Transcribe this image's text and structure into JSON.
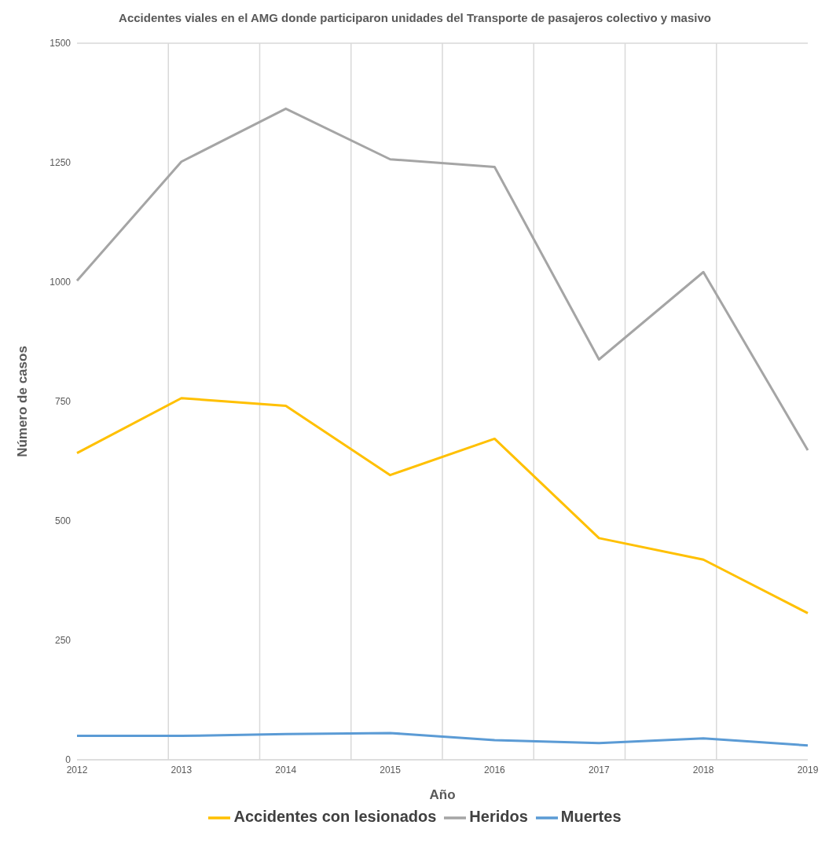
{
  "chart_data": {
    "type": "line",
    "title": "Accidentes viales en el AMG donde participaron unidades del Transporte de pasajeros colectivo y masivo",
    "xlabel": "Año",
    "ylabel": "Número de casos",
    "categories": [
      "2012",
      "2013",
      "2014",
      "2015",
      "2016",
      "2017",
      "2018",
      "2019"
    ],
    "series": [
      {
        "name": "Accidentes con lesionados",
        "color": "#ffc000",
        "values": [
          642,
          757,
          741,
          596,
          672,
          464,
          419,
          307
        ]
      },
      {
        "name": "Heridos",
        "color": "#a5a5a5",
        "values": [
          1003,
          1252,
          1363,
          1257,
          1241,
          838,
          1021,
          648
        ]
      },
      {
        "name": "Muertes",
        "color": "#5b9bd5",
        "values": [
          50,
          50,
          54,
          56,
          41,
          35,
          45,
          30
        ]
      }
    ],
    "ylim": [
      0,
      1500
    ],
    "yticks": [
      0,
      250,
      500,
      750,
      1000,
      1250,
      1500
    ],
    "grid": true,
    "legend": "bottom",
    "marker": "none",
    "line_style": "solid"
  }
}
